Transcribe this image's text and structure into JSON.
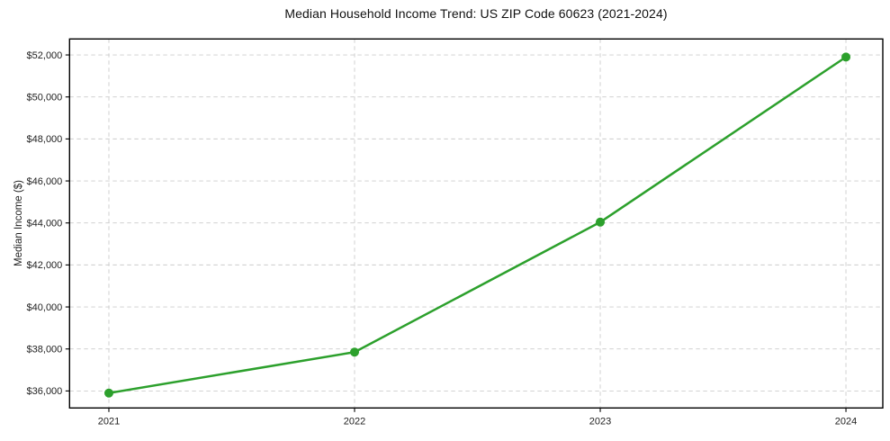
{
  "chart_data": {
    "type": "line",
    "title": "Median Household Income Trend: US ZIP Code 60623 (2021-2024)",
    "xlabel": "",
    "ylabel": "Median Income ($)",
    "x": [
      2021,
      2022,
      2023,
      2024
    ],
    "x_tick_labels": [
      "2021",
      "2022",
      "2023",
      "2024"
    ],
    "values": [
      35900,
      37850,
      44040,
      51900
    ],
    "yticks": [
      36000,
      38000,
      40000,
      42000,
      44000,
      46000,
      48000,
      50000,
      52000
    ],
    "ytick_labels": [
      "$36,000",
      "$38,000",
      "$40,000",
      "$42,000",
      "$44,000",
      "$46,000",
      "$48,000",
      "$50,000",
      "$52,000"
    ],
    "xlim": [
      2020.84,
      2024.15
    ],
    "ylim": [
      35190,
      52760
    ],
    "grid": true,
    "grid_style": "dashed",
    "legend": "none"
  },
  "style": {
    "line_color": "#2ca02c",
    "marker_color": "#2ca02c",
    "grid_color": "#cccccc",
    "axis_color": "#000000",
    "tick_text_color": "#222222",
    "title_color": "#111111",
    "background_color": "#ffffff",
    "line_width": 2.5,
    "marker_radius": 5
  }
}
